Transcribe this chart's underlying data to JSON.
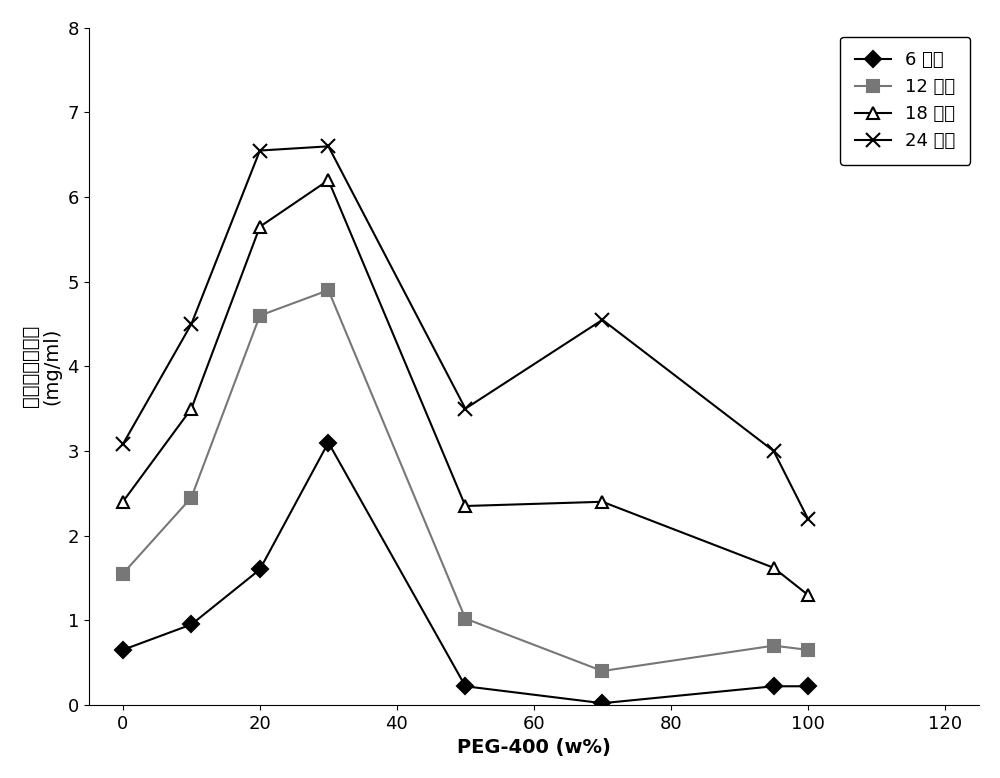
{
  "title": "",
  "xlabel": "PEG-400 (w%)",
  "ylabel_line1": "消化的胶原蛋白",
  "ylabel_line2": "(mg/ml)",
  "xlim": [
    -5,
    125
  ],
  "ylim": [
    0,
    8
  ],
  "xticks": [
    0,
    20,
    40,
    60,
    80,
    100,
    120
  ],
  "yticks": [
    0,
    1,
    2,
    3,
    4,
    5,
    6,
    7,
    8
  ],
  "series": [
    {
      "label": "6 小时",
      "x": [
        0,
        10,
        20,
        30,
        50,
        70,
        95,
        100
      ],
      "y": [
        0.65,
        0.95,
        1.6,
        3.1,
        0.22,
        0.02,
        0.22,
        0.22
      ],
      "color": "#000000",
      "marker": "D",
      "markersize": 8,
      "linestyle": "-",
      "linewidth": 1.5,
      "markerfacecolor": "#000000"
    },
    {
      "label": "12 小时",
      "x": [
        0,
        10,
        20,
        30,
        50,
        70,
        95,
        100
      ],
      "y": [
        1.55,
        2.45,
        4.6,
        4.9,
        1.02,
        0.4,
        0.7,
        0.65
      ],
      "color": "#777777",
      "marker": "s",
      "markersize": 8,
      "linestyle": "-",
      "linewidth": 1.5,
      "markerfacecolor": "#777777"
    },
    {
      "label": "18 小时",
      "x": [
        0,
        10,
        20,
        30,
        50,
        70,
        95,
        100
      ],
      "y": [
        2.4,
        3.5,
        5.65,
        6.2,
        2.35,
        2.4,
        1.62,
        1.3
      ],
      "color": "#000000",
      "marker": "^",
      "markersize": 9,
      "linestyle": "-",
      "linewidth": 1.5,
      "markerfacecolor": "white"
    },
    {
      "label": "24 小时",
      "x": [
        0,
        10,
        20,
        30,
        50,
        70,
        95,
        100
      ],
      "y": [
        3.08,
        4.5,
        6.55,
        6.6,
        3.5,
        4.55,
        3.0,
        2.2
      ],
      "color": "#000000",
      "marker": "x",
      "markersize": 10,
      "linestyle": "-",
      "linewidth": 1.5,
      "markerfacecolor": "#000000"
    }
  ],
  "legend_loc": "upper right",
  "background_color": "#ffffff",
  "font_size": 13,
  "label_font_size": 14,
  "tick_font_size": 13
}
